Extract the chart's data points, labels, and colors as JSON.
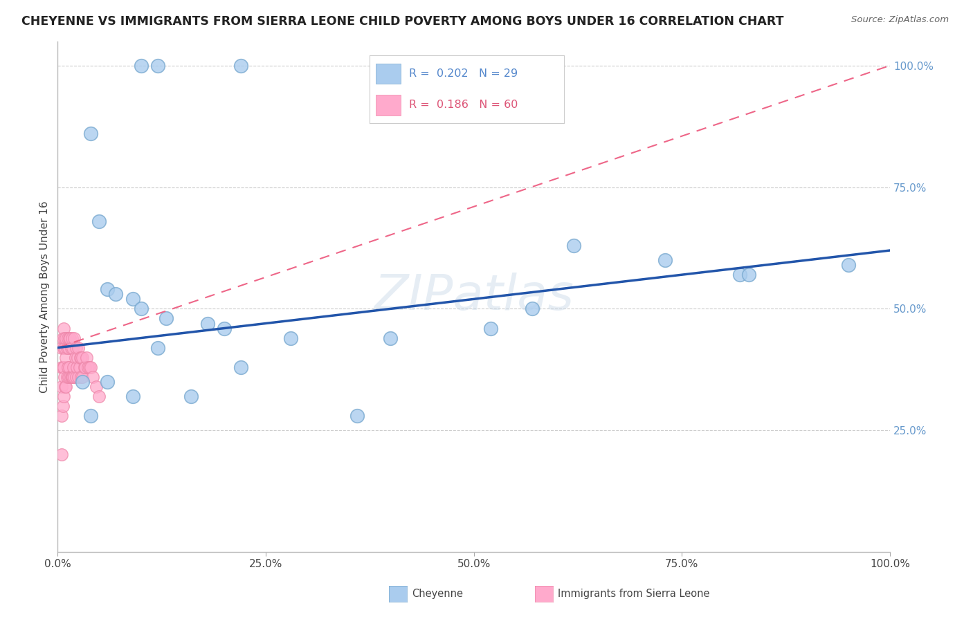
{
  "title": "CHEYENNE VS IMMIGRANTS FROM SIERRA LEONE CHILD POVERTY AMONG BOYS UNDER 16 CORRELATION CHART",
  "source": "Source: ZipAtlas.com",
  "ylabel": "Child Poverty Among Boys Under 16",
  "background_color": "#ffffff",
  "watermark": "ZIPatlas",
  "cheyenne_x": [
    0.1,
    0.12,
    0.22,
    0.04,
    0.05,
    0.06,
    0.07,
    0.09,
    0.1,
    0.13,
    0.18,
    0.2,
    0.28,
    0.4,
    0.52,
    0.57,
    0.62,
    0.73,
    0.82,
    0.03,
    0.04,
    0.06,
    0.09,
    0.12,
    0.16,
    0.22,
    0.36,
    0.83,
    0.95
  ],
  "cheyenne_y": [
    1.0,
    1.0,
    1.0,
    0.86,
    0.68,
    0.54,
    0.53,
    0.52,
    0.5,
    0.48,
    0.47,
    0.46,
    0.44,
    0.44,
    0.46,
    0.5,
    0.63,
    0.6,
    0.57,
    0.35,
    0.28,
    0.35,
    0.32,
    0.42,
    0.32,
    0.38,
    0.28,
    0.57,
    0.59
  ],
  "sierra_leone_x": [
    0.005,
    0.005,
    0.005,
    0.005,
    0.005,
    0.006,
    0.006,
    0.006,
    0.007,
    0.007,
    0.007,
    0.007,
    0.008,
    0.008,
    0.009,
    0.009,
    0.01,
    0.01,
    0.01,
    0.011,
    0.011,
    0.012,
    0.012,
    0.013,
    0.013,
    0.014,
    0.014,
    0.015,
    0.015,
    0.016,
    0.016,
    0.017,
    0.017,
    0.018,
    0.018,
    0.019,
    0.02,
    0.02,
    0.021,
    0.022,
    0.022,
    0.023,
    0.024,
    0.025,
    0.025,
    0.026,
    0.027,
    0.028,
    0.028,
    0.03,
    0.03,
    0.032,
    0.033,
    0.035,
    0.036,
    0.038,
    0.04,
    0.042,
    0.046,
    0.05
  ],
  "sierra_leone_y": [
    0.42,
    0.38,
    0.34,
    0.28,
    0.2,
    0.44,
    0.38,
    0.3,
    0.46,
    0.42,
    0.38,
    0.32,
    0.44,
    0.36,
    0.42,
    0.34,
    0.44,
    0.4,
    0.34,
    0.42,
    0.36,
    0.44,
    0.38,
    0.42,
    0.36,
    0.44,
    0.38,
    0.44,
    0.36,
    0.42,
    0.36,
    0.44,
    0.36,
    0.42,
    0.36,
    0.38,
    0.44,
    0.36,
    0.4,
    0.42,
    0.36,
    0.38,
    0.4,
    0.42,
    0.36,
    0.38,
    0.4,
    0.4,
    0.36,
    0.4,
    0.36,
    0.38,
    0.38,
    0.4,
    0.38,
    0.38,
    0.38,
    0.36,
    0.34,
    0.32
  ],
  "cheyenne_color": "#aaccee",
  "cheyenne_edge_color": "#7aaad0",
  "sierra_leone_color": "#ffaacc",
  "sierra_leone_edge_color": "#ee88aa",
  "cheyenne_line_color": "#2255aa",
  "sierra_leone_line_color": "#ee6688",
  "R_cheyenne": 0.202,
  "N_cheyenne": 29,
  "R_sierra_leone": 0.186,
  "N_sierra_leone": 60,
  "cheyenne_line_start_y": 0.42,
  "cheyenne_line_end_y": 0.62,
  "sierra_line_start_y": 0.42,
  "sierra_line_end_y": 1.0,
  "xlim": [
    0.0,
    1.0
  ],
  "ylim": [
    0.0,
    1.05
  ],
  "xticks": [
    0.0,
    0.25,
    0.5,
    0.75,
    1.0
  ],
  "xtick_labels": [
    "0.0%",
    "25.0%",
    "50.0%",
    "75.0%",
    "100.0%"
  ],
  "ytick_positions": [
    0.25,
    0.5,
    0.75,
    1.0
  ],
  "ytick_labels": [
    "25.0%",
    "50.0%",
    "75.0%",
    "100.0%"
  ]
}
